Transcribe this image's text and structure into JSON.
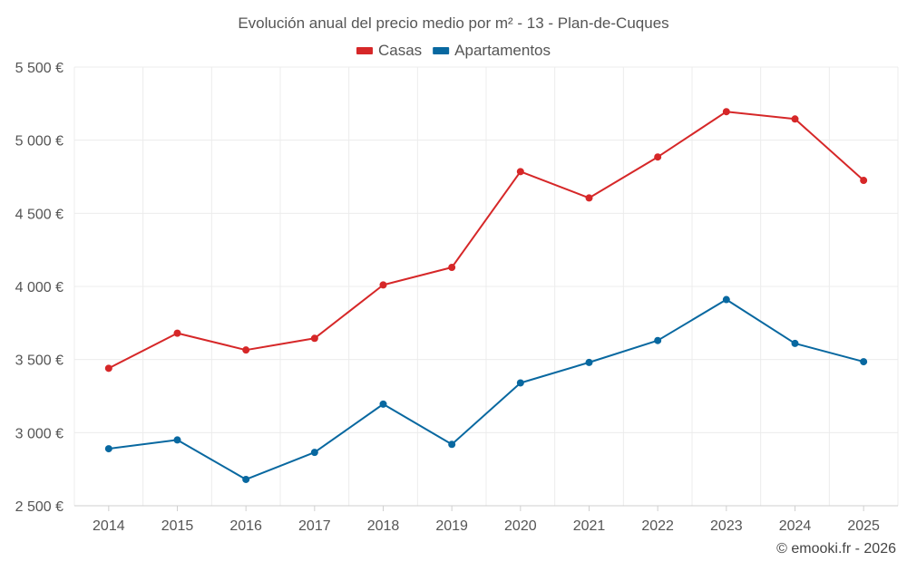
{
  "chart_data": {
    "type": "line",
    "title": "Evolución anual del precio medio por m² - 13 - Plan-de-Cuques",
    "categories": [
      "2014",
      "2015",
      "2016",
      "2017",
      "2018",
      "2019",
      "2020",
      "2021",
      "2022",
      "2023",
      "2024",
      "2025"
    ],
    "series": [
      {
        "name": "Casas",
        "color": "#d62728",
        "values": [
          3440,
          3680,
          3565,
          3645,
          4010,
          4130,
          4785,
          4605,
          4885,
          5195,
          5145,
          4725
        ]
      },
      {
        "name": "Apartamentos",
        "color": "#0868a0",
        "values": [
          2890,
          2950,
          2680,
          2865,
          3195,
          2920,
          3340,
          3480,
          3630,
          3910,
          3610,
          3485
        ]
      }
    ],
    "ylim": [
      2500,
      5500
    ],
    "yticks": [
      2500,
      3000,
      3500,
      4000,
      4500,
      5000,
      5500
    ],
    "ytick_labels": [
      "2 500 €",
      "3 000 €",
      "3 500 €",
      "4 000 €",
      "4 500 €",
      "5 000 €",
      "5 500 €"
    ],
    "xlabel": "",
    "ylabel": "",
    "grid": true,
    "legend_position": "top-center"
  },
  "footer": {
    "credit": "© emooki.fr - 2026"
  }
}
